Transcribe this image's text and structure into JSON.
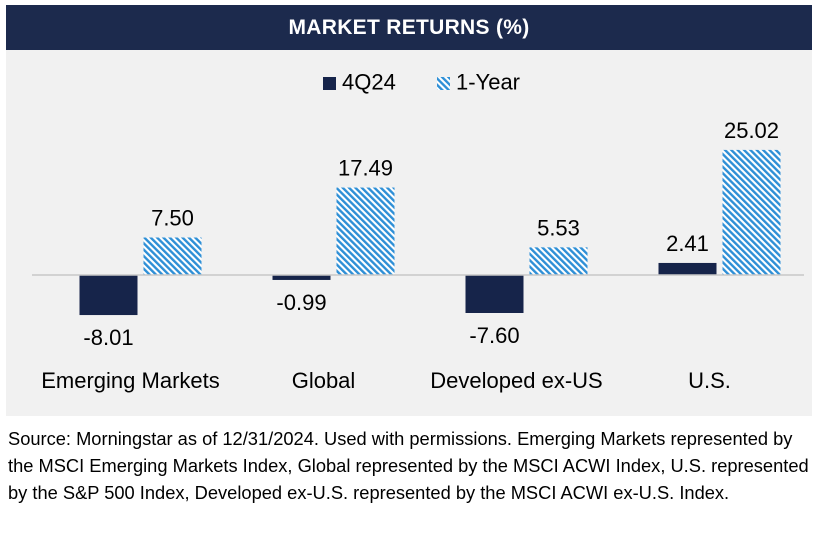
{
  "header": {
    "title": "MARKET RETURNS (%)"
  },
  "colors": {
    "title_bg": "#1c2a4d",
    "series_4q24": "#16244a",
    "series_1y_stripe": "#2e8fd6",
    "panel_bg": "#f1f1f1"
  },
  "chart_data": {
    "type": "bar",
    "title": "MARKET RETURNS (%)",
    "categories": [
      "Emerging Markets",
      "Global",
      "Developed ex-US",
      "U.S."
    ],
    "series": [
      {
        "name": "4Q24",
        "values": [
          -8.01,
          -0.99,
          -7.6,
          2.41
        ],
        "labels": [
          "-8.01",
          "-0.99",
          "-7.60",
          "2.41"
        ]
      },
      {
        "name": "1-Year",
        "values": [
          7.5,
          17.49,
          5.53,
          25.02
        ],
        "labels": [
          "7.50",
          "17.49",
          "5.53",
          "25.02"
        ]
      }
    ],
    "xlabel": "",
    "ylabel": "",
    "ylim": [
      -12,
      28
    ],
    "grid": false,
    "legend": "top-center"
  },
  "footer": {
    "source": "Source: Morningstar as of 12/31/2024. Used with permissions. Emerging Markets represented by the MSCI Emerging Markets Index, Global represented by the MSCI ACWI Index, U.S. represented by the S&P 500 Index, Developed ex-U.S. represented by the MSCI ACWI ex-U.S. Index."
  }
}
